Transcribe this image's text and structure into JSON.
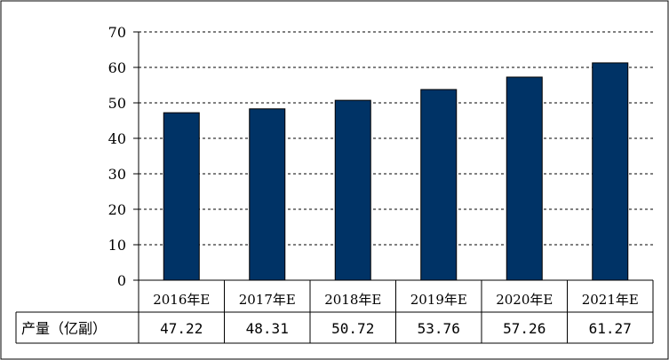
{
  "chart_data": {
    "type": "bar",
    "categories": [
      "2016年E",
      "2017年E",
      "2018年E",
      "2019年E",
      "2020年E",
      "2021年E"
    ],
    "series": [
      {
        "name": "产量（亿副）",
        "values": [
          47.22,
          48.31,
          50.72,
          53.76,
          57.26,
          61.27
        ]
      }
    ],
    "value_labels": [
      "47.22",
      "48.31",
      "50.72",
      "53.76",
      "57.26",
      "61.27"
    ],
    "y_ticks": [
      "0",
      "10",
      "20",
      "30",
      "40",
      "50",
      "60",
      "70"
    ],
    "ylim": [
      0,
      70
    ],
    "grid": "dashed-horizontal",
    "legend": "data-table-row",
    "bar_color": "#003366",
    "title": "",
    "xlabel": "",
    "ylabel": ""
  }
}
